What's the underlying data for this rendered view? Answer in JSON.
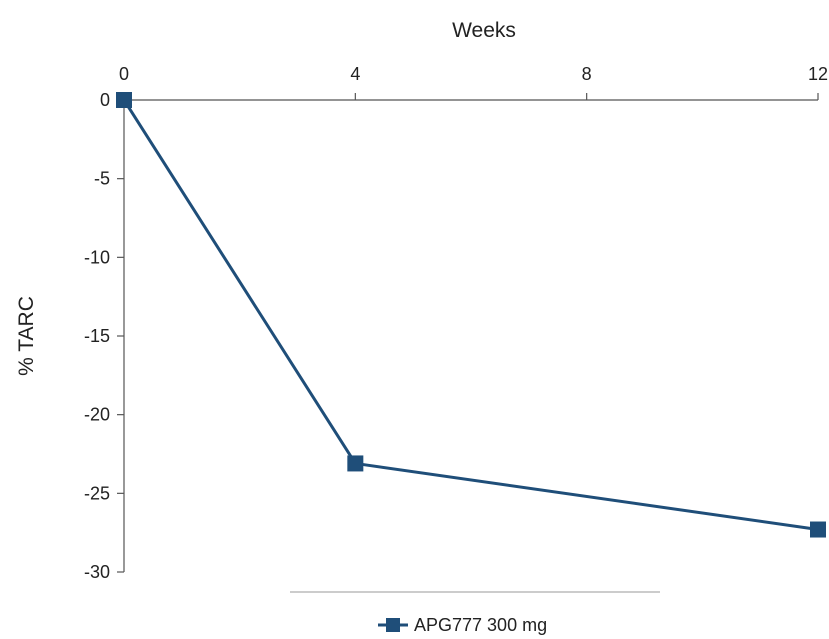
{
  "chart_data": {
    "type": "line",
    "xlabel": "Weeks",
    "ylabel": "% TARC",
    "xlim": [
      0,
      12
    ],
    "ylim": [
      -30,
      0
    ],
    "x_ticks": [
      0,
      4,
      8,
      12
    ],
    "y_ticks": [
      0,
      -5,
      -10,
      -15,
      -20,
      -25,
      -30
    ],
    "x_axis_position": "top",
    "grid": false,
    "legend_position": "bottom-center",
    "series": [
      {
        "name": "APG777 300 mg",
        "color": "#1f4e79",
        "marker": "square",
        "x": [
          0,
          4,
          12
        ],
        "y": [
          0,
          -23.1,
          -27.3
        ]
      }
    ]
  }
}
